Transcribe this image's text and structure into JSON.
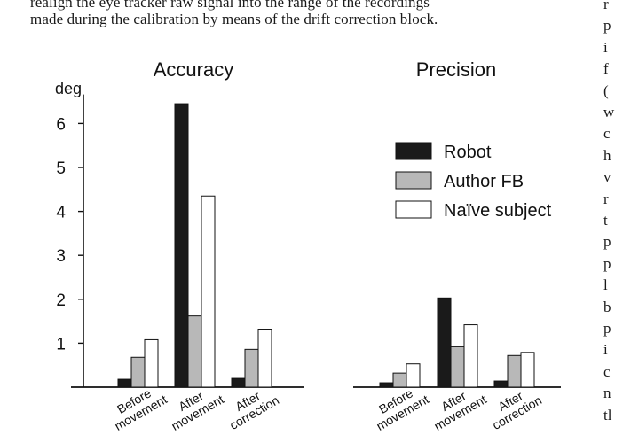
{
  "text": {
    "line1": "realign the eye tracker raw signal into the range of the recordings",
    "line2": "made during the calibration by means of the drift correction block.",
    "right_column_letters": [
      "r",
      "p",
      "i",
      "f",
      "(",
      "w",
      "c",
      "h",
      "v",
      "r",
      "t",
      "p",
      "p",
      "l",
      "b",
      "p",
      "i",
      "c",
      "n",
      "tl"
    ]
  },
  "chart_data": {
    "type": "bar",
    "ylabel": "deg",
    "ylim": [
      0,
      6.5
    ],
    "yticks": [
      1,
      2,
      3,
      4,
      5,
      6
    ],
    "legend": {
      "placement": "right of Accuracy panel",
      "entries": [
        "Robot",
        "Author FB",
        "Naïve subject"
      ]
    },
    "colors": {
      "Robot": "#1a1a1a",
      "Author FB": "#b8b8b8",
      "Naïve subject": "#ffffff"
    },
    "panels": [
      {
        "title": "Accuracy",
        "categories": [
          "Before movement",
          "After movement",
          "After correction"
        ],
        "series": [
          {
            "name": "Robot",
            "values": [
              0.18,
              6.45,
              0.2
            ]
          },
          {
            "name": "Author FB",
            "values": [
              0.68,
              1.62,
              0.86
            ]
          },
          {
            "name": "Naïve subject",
            "values": [
              1.08,
              4.35,
              1.32
            ]
          }
        ]
      },
      {
        "title": "Precision",
        "categories": [
          "Before movement",
          "After movement",
          "After correction"
        ],
        "series": [
          {
            "name": "Robot",
            "values": [
              0.1,
              2.03,
              0.14
            ]
          },
          {
            "name": "Author FB",
            "values": [
              0.32,
              0.92,
              0.72
            ]
          },
          {
            "name": "Naïve subject",
            "values": [
              0.53,
              1.42,
              0.79
            ]
          }
        ]
      }
    ],
    "category_labels_display": [
      [
        "Before",
        "movement"
      ],
      [
        "After",
        "movement"
      ],
      [
        "After",
        "correction"
      ]
    ]
  }
}
